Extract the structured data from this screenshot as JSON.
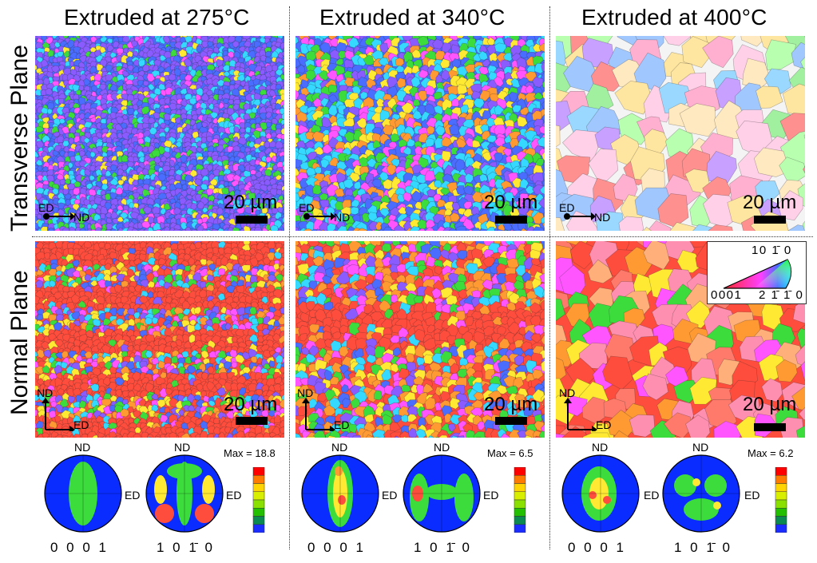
{
  "columns": [
    {
      "title": "Extruded at 275°C",
      "max": "Max = 18.8"
    },
    {
      "title": "Extruded at 340°C",
      "max": "Max = 6.5"
    },
    {
      "title": "Extruded at 400°C",
      "max": "Max = 6.2"
    }
  ],
  "rows": {
    "transverse": "Transverse Plane",
    "normal": "Normal Plane"
  },
  "scale_bar": "20 µm",
  "axes": {
    "ed": "ED",
    "nd": "ND"
  },
  "pole_figures": {
    "basal": "0001",
    "prism": "10̅ 1̅0"
  },
  "pole_labels": {
    "basal": "0 0 0 1",
    "prism": "1 0 1̄ 0"
  },
  "ipf_legend": {
    "top": "10 1̄ 0",
    "left": "0001",
    "right": "2 1̄ 1̄ 0"
  },
  "colors": {
    "red": "#ff4d3d",
    "orange": "#ff9a33",
    "yellow": "#ffe933",
    "green": "#3ddc3d",
    "cyan": "#35d8ff",
    "blue": "#4a6cff",
    "violet": "#8a5cff",
    "magenta": "#ff55ff",
    "pf_bg": "#0a2cff"
  }
}
